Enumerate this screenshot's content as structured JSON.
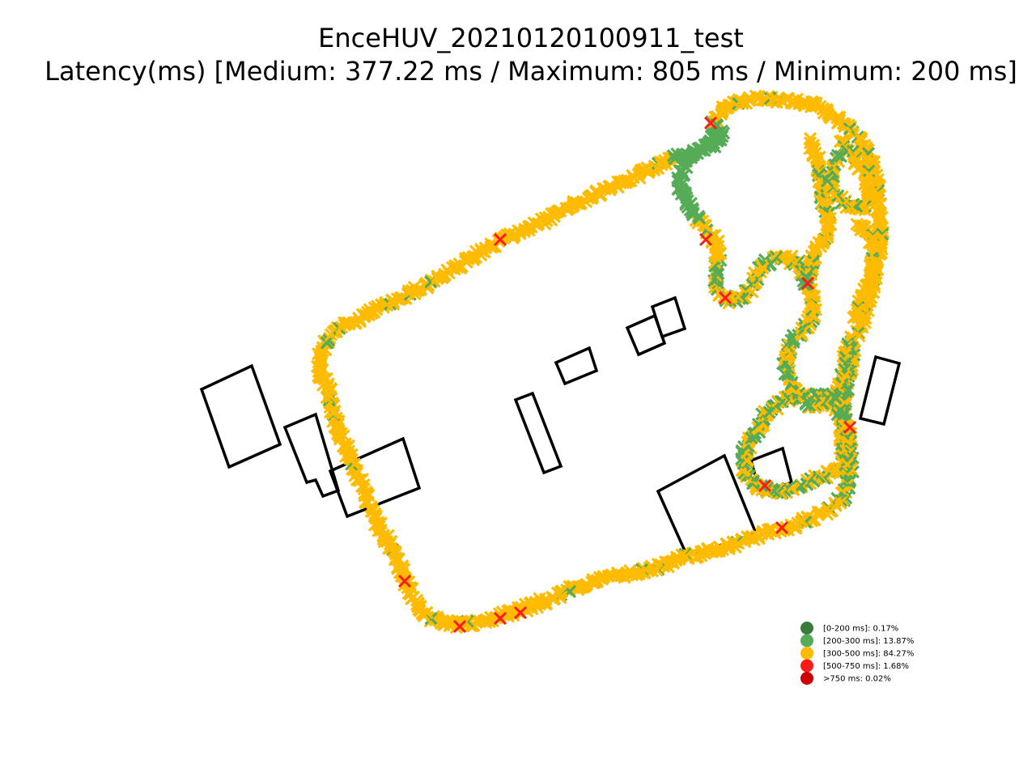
{
  "chart_data": {
    "type": "scatter",
    "title": "EnceHUV_20210120100911_test",
    "subtitle": "Latency(ms) [Medium: 377.22 ms / Maximum: 805 ms / Minimum: 200 ms]",
    "marker": "x",
    "axes_visible": false,
    "grid": false,
    "legend_position": "lower-right",
    "legend": [
      {
        "label": "[0-200 ms]: 0.17%",
        "color": "#3a7a3a",
        "share": 0.17
      },
      {
        "label": "[200-300 ms]: 13.87%",
        "color": "#56ab56",
        "share": 13.87
      },
      {
        "label": "[300-500 ms]: 84.27%",
        "color": "#ffbb00",
        "share": 84.27
      },
      {
        "label": "[500-750 ms]: 1.68%",
        "color": "#ff1a1a",
        "share": 1.68
      },
      {
        "label": ">750 ms: 0.02%",
        "color": "#cc0000",
        "share": 0.02
      }
    ],
    "stats": {
      "medium_ms": 377.22,
      "maximum_ms": 805,
      "minimum_ms": 200
    }
  }
}
